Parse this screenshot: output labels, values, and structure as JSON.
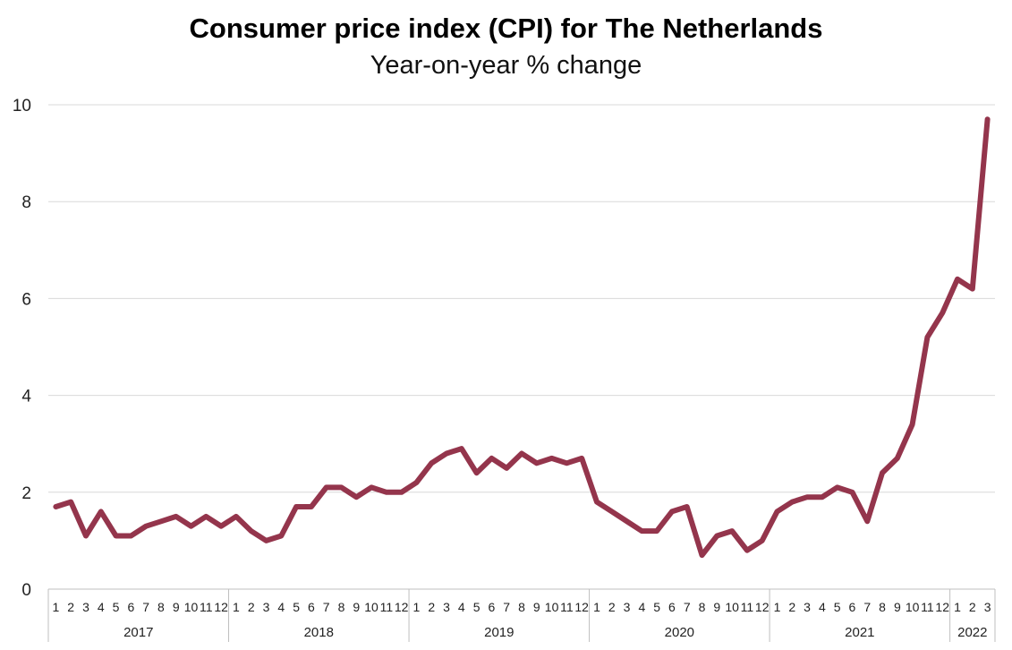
{
  "chart_data": {
    "type": "line",
    "title": "Consumer price index (CPI) for The Netherlands",
    "subtitle": "Year-on-year % change",
    "xlabel": "",
    "ylabel": "",
    "ylim": [
      0,
      10
    ],
    "yticks": [
      0,
      2,
      4,
      6,
      8,
      10
    ],
    "grid": true,
    "line_color": "#94354c",
    "years": [
      {
        "label": "2017",
        "months": [
          "1",
          "2",
          "3",
          "4",
          "5",
          "6",
          "7",
          "8",
          "9",
          "10",
          "11",
          "12"
        ]
      },
      {
        "label": "2018",
        "months": [
          "1",
          "2",
          "3",
          "4",
          "5",
          "6",
          "7",
          "8",
          "9",
          "10",
          "11",
          "12"
        ]
      },
      {
        "label": "2019",
        "months": [
          "1",
          "2",
          "3",
          "4",
          "5",
          "6",
          "7",
          "8",
          "9",
          "10",
          "11",
          "12"
        ]
      },
      {
        "label": "2020",
        "months": [
          "1",
          "2",
          "3",
          "4",
          "5",
          "6",
          "7",
          "8",
          "9",
          "10",
          "11",
          "12"
        ]
      },
      {
        "label": "2021",
        "months": [
          "1",
          "2",
          "3",
          "4",
          "5",
          "6",
          "7",
          "8",
          "9",
          "10",
          "11",
          "12"
        ]
      },
      {
        "label": "2022",
        "months": [
          "1",
          "2",
          "3"
        ]
      }
    ],
    "series": [
      {
        "values": [
          1.7,
          1.8,
          1.1,
          1.6,
          1.1,
          1.1,
          1.3,
          1.4,
          1.5,
          1.3,
          1.5,
          1.3,
          1.5,
          1.2,
          1.0,
          1.1,
          1.7,
          1.7,
          2.1,
          2.1,
          1.9,
          2.1,
          2.0,
          2.0,
          2.2,
          2.6,
          2.8,
          2.9,
          2.4,
          2.7,
          2.5,
          2.8,
          2.6,
          2.7,
          2.6,
          2.7,
          1.8,
          1.6,
          1.4,
          1.2,
          1.2,
          1.6,
          1.7,
          0.7,
          1.1,
          1.2,
          0.8,
          1.0,
          1.6,
          1.8,
          1.9,
          1.9,
          2.1,
          2.0,
          1.4,
          2.4,
          2.7,
          3.4,
          5.2,
          5.7,
          6.4,
          6.2,
          9.7
        ]
      }
    ]
  }
}
